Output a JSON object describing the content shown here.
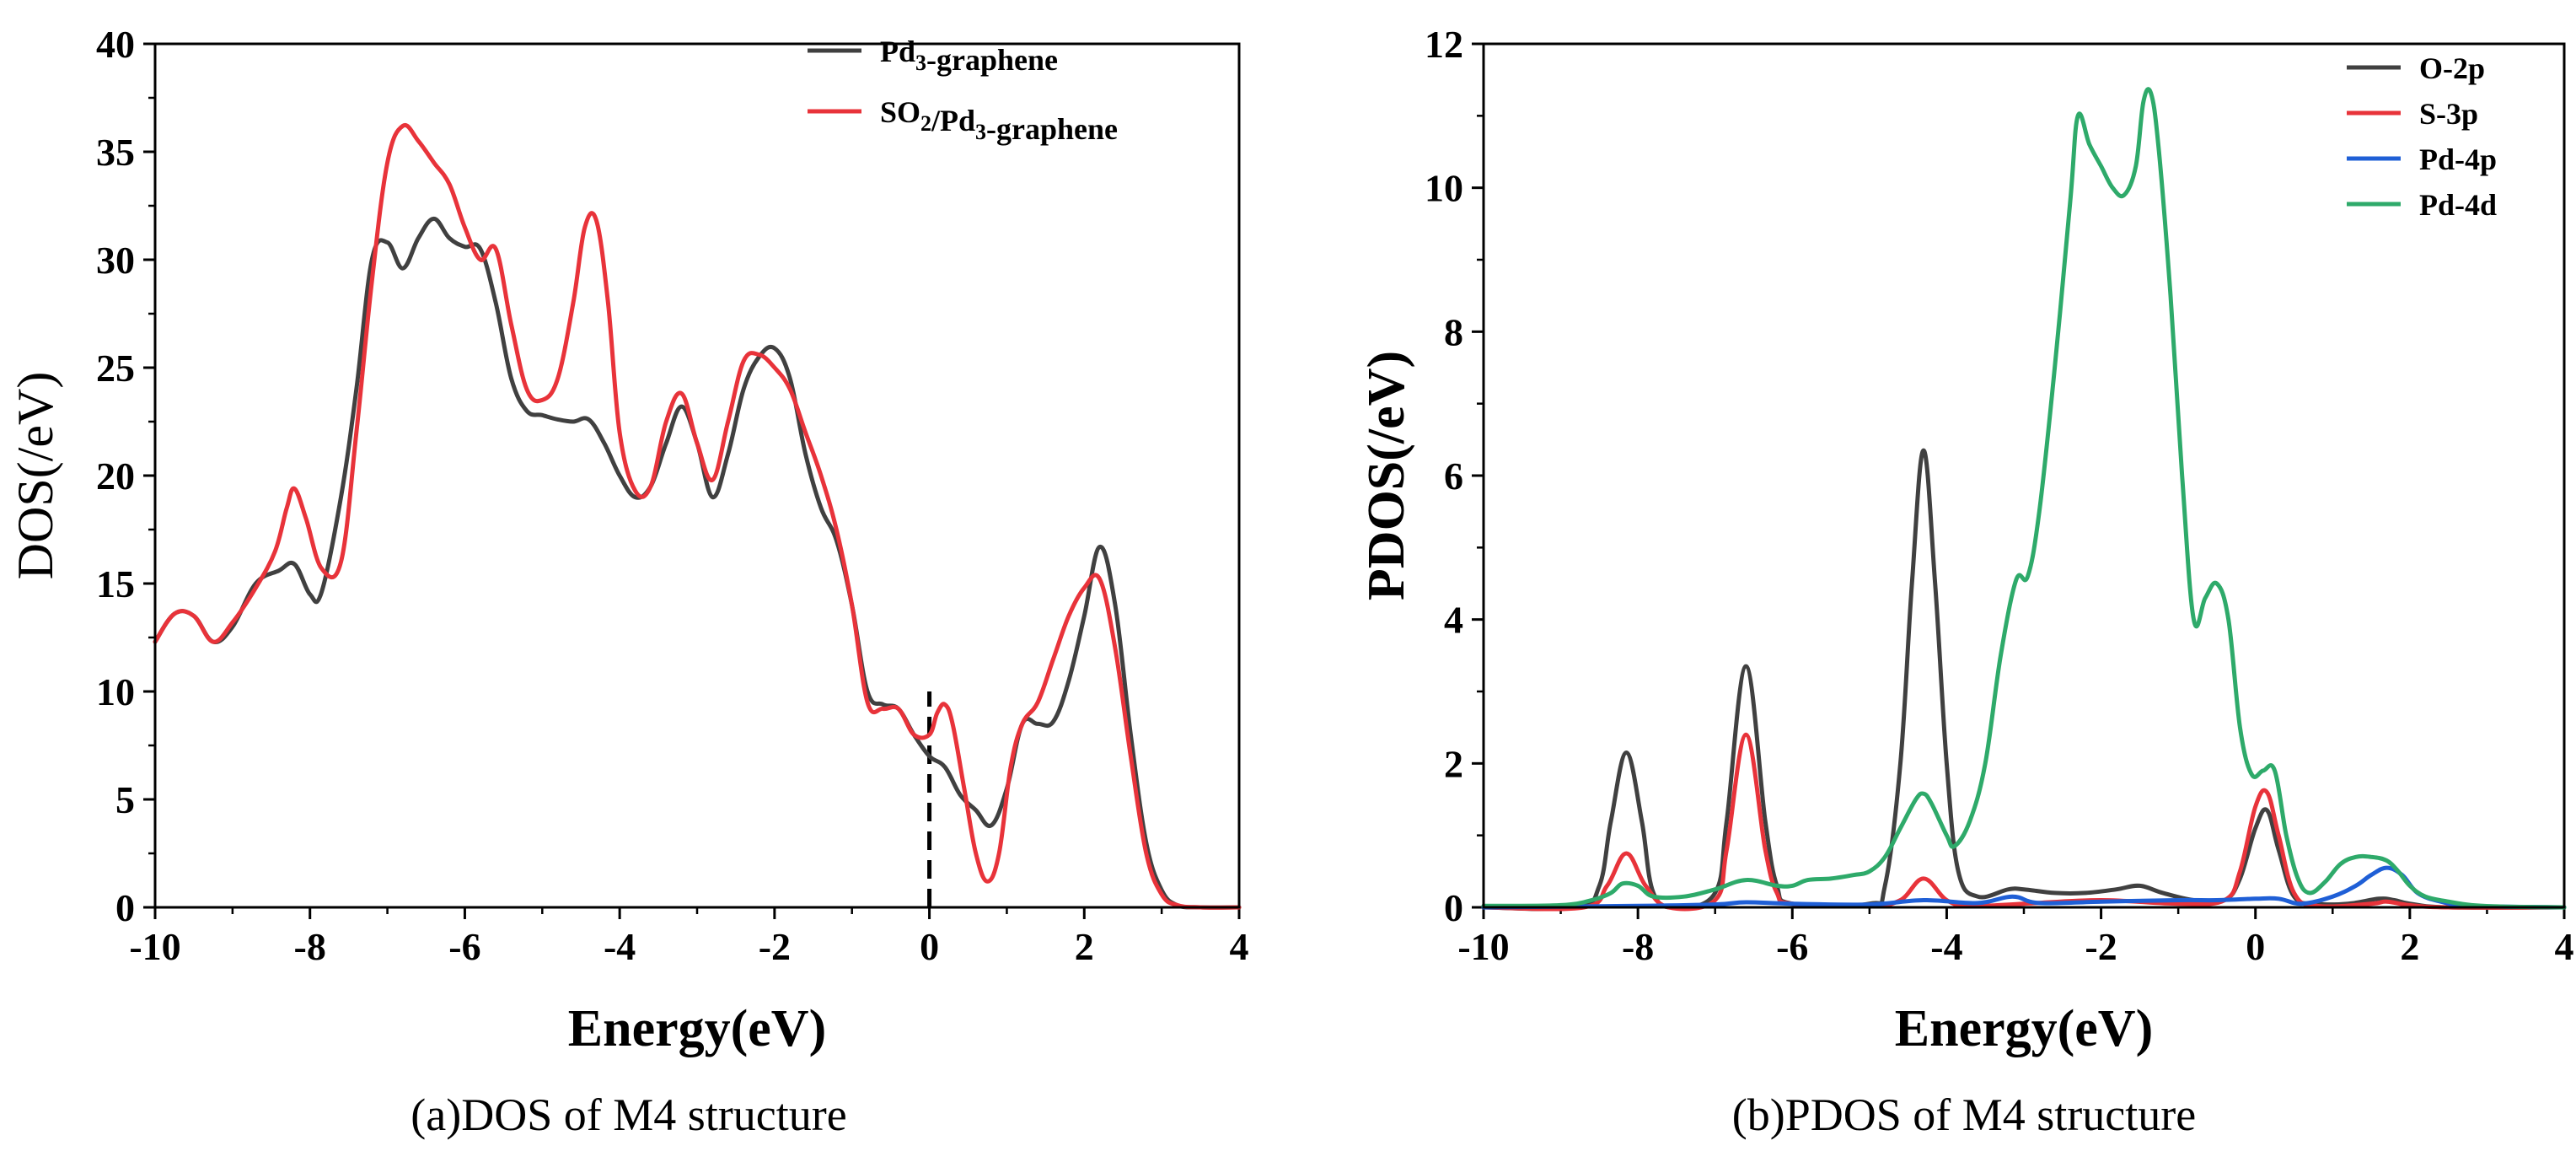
{
  "chart_data": [
    {
      "type": "line",
      "title": "",
      "caption": "(a)DOS of M4 structure",
      "xlabel": "Energy(eV)",
      "ylabel": "DOS(/eV)",
      "xlim": [
        -10,
        4
      ],
      "ylim": [
        0,
        40
      ],
      "xticks": [
        -10,
        -8,
        -6,
        -4,
        -2,
        0,
        2,
        4
      ],
      "yticks": [
        0,
        5,
        10,
        15,
        20,
        25,
        30,
        35,
        40
      ],
      "fermi_line": {
        "x": 0,
        "y_top": 10,
        "style": "dashed"
      },
      "legend_position": "top-right",
      "series": [
        {
          "name": "Pd3-graphene",
          "legend_main": "Pd",
          "legend_sub": "3",
          "legend_rest": "-graphene",
          "color": "#404040",
          "x": [
            -10,
            -9.75,
            -9.5,
            -9.25,
            -9,
            -8.7,
            -8.4,
            -8.2,
            -8,
            -7.85,
            -7.6,
            -7.4,
            -7.2,
            -7.0,
            -6.8,
            -6.6,
            -6.4,
            -6.2,
            -6.0,
            -5.8,
            -5.6,
            -5.4,
            -5.2,
            -5.0,
            -4.8,
            -4.6,
            -4.4,
            -4.2,
            -4.0,
            -3.8,
            -3.6,
            -3.4,
            -3.2,
            -3.0,
            -2.8,
            -2.6,
            -2.4,
            -2.2,
            -2.0,
            -1.8,
            -1.6,
            -1.4,
            -1.2,
            -1.0,
            -0.8,
            -0.6,
            -0.4,
            -0.2,
            0,
            0.2,
            0.4,
            0.6,
            0.8,
            1.0,
            1.2,
            1.4,
            1.6,
            1.8,
            2.0,
            2.2,
            2.4,
            2.6,
            2.8,
            3.0,
            3.2,
            3.5,
            4.0
          ],
          "y": [
            12.3,
            13.6,
            13.5,
            12.3,
            13,
            15,
            15.6,
            15.9,
            14.5,
            14.6,
            19,
            24,
            30,
            30.8,
            29.6,
            31,
            31.9,
            31,
            30.6,
            30.5,
            28,
            24.5,
            23,
            22.8,
            22.6,
            22.5,
            22.6,
            21.5,
            20,
            19,
            19.5,
            21.5,
            23.2,
            21.5,
            19,
            21,
            24,
            25.5,
            25.9,
            24.5,
            21,
            18.5,
            17,
            14,
            10,
            9.4,
            9.2,
            8,
            7,
            6.5,
            5.2,
            4.5,
            3.8,
            5.5,
            8.5,
            8.5,
            8.6,
            10.5,
            13.5,
            16.7,
            14,
            8,
            3,
            0.8,
            0.1,
            0,
            0
          ]
        },
        {
          "name": "SO2/Pd3-graphene",
          "legend_main": "SO",
          "legend_sub": "2",
          "legend_rest": "/Pd",
          "legend_sub2": "3",
          "legend_rest2": "-graphene",
          "color": "#e8333a",
          "x": [
            -10,
            -9.75,
            -9.5,
            -9.25,
            -9,
            -8.7,
            -8.45,
            -8.3,
            -8.2,
            -8.05,
            -7.85,
            -7.6,
            -7.4,
            -7.2,
            -7.0,
            -6.8,
            -6.6,
            -6.4,
            -6.2,
            -6.0,
            -5.8,
            -5.6,
            -5.4,
            -5.2,
            -5.0,
            -4.8,
            -4.6,
            -4.45,
            -4.3,
            -4.15,
            -4.0,
            -3.8,
            -3.6,
            -3.4,
            -3.2,
            -3.0,
            -2.8,
            -2.6,
            -2.4,
            -2.2,
            -2.0,
            -1.8,
            -1.6,
            -1.4,
            -1.2,
            -1.0,
            -0.8,
            -0.6,
            -0.4,
            -0.2,
            0,
            0.1,
            0.2,
            0.3,
            0.45,
            0.6,
            0.75,
            0.9,
            1.05,
            1.2,
            1.4,
            1.6,
            1.8,
            2.0,
            2.2,
            2.4,
            2.6,
            2.8,
            3.0,
            3.2,
            3.5,
            4.0
          ],
          "y": [
            12.3,
            13.6,
            13.5,
            12.3,
            13.2,
            14.8,
            16.5,
            18.5,
            19.4,
            18,
            15.7,
            16,
            22,
            29,
            34.5,
            36.2,
            35.5,
            34.5,
            33.5,
            31.5,
            30,
            30.5,
            27,
            24,
            23.5,
            24.5,
            28,
            31.5,
            31.8,
            28,
            22,
            19.3,
            19.5,
            22.5,
            23.8,
            21.5,
            19.8,
            22.5,
            25.3,
            25.6,
            25,
            24,
            22,
            20,
            17.5,
            14,
            9.5,
            9.2,
            9.2,
            8,
            8,
            9,
            9.4,
            8.5,
            5.5,
            2.5,
            1.2,
            2.5,
            6.5,
            8.5,
            9.5,
            11.5,
            13.5,
            14.8,
            15.2,
            12,
            7,
            2.5,
            0.6,
            0.1,
            0,
            0
          ]
        }
      ]
    },
    {
      "type": "line",
      "title": "",
      "caption": "(b)PDOS of M4 structure",
      "xlabel": "Energy(eV)",
      "ylabel": "PDOS(/eV)",
      "xlim": [
        -10,
        4
      ],
      "ylim": [
        0,
        12
      ],
      "xticks": [
        -10,
        -8,
        -6,
        -4,
        -2,
        0,
        2,
        4
      ],
      "yticks": [
        0,
        2,
        4,
        6,
        8,
        10,
        12
      ],
      "legend_position": "top-right",
      "series": [
        {
          "name": "O-2p",
          "color": "#404040",
          "x": [
            -10,
            -8.8,
            -8.5,
            -8.35,
            -8.15,
            -7.95,
            -7.8,
            -7.5,
            -7.0,
            -6.85,
            -6.6,
            -6.35,
            -6.2,
            -6.0,
            -5.0,
            -4.8,
            -4.6,
            -4.45,
            -4.3,
            -4.15,
            -4.0,
            -3.85,
            -3.6,
            -3.2,
            -3.0,
            -2.6,
            -2.2,
            -1.8,
            -1.5,
            -1.2,
            -0.8,
            -0.4,
            -0.2,
            0,
            0.15,
            0.3,
            0.5,
            0.8,
            1.2,
            1.6,
            1.8,
            2.0,
            2.5,
            4.0
          ],
          "y": [
            0,
            0,
            0.3,
            1.2,
            2.15,
            1.2,
            0.2,
            0,
            0.2,
            1.2,
            3.35,
            1.2,
            0.3,
            0.05,
            0.05,
            0.3,
            2.0,
            4.5,
            6.35,
            4.5,
            2.0,
            0.5,
            0.15,
            0.25,
            0.25,
            0.2,
            0.2,
            0.25,
            0.3,
            0.2,
            0.1,
            0.1,
            0.4,
            1.1,
            1.35,
            0.8,
            0.15,
            0.05,
            0.05,
            0.12,
            0.1,
            0.05,
            0,
            0
          ]
        },
        {
          "name": "S-3p",
          "color": "#e8333a",
          "x": [
            -10,
            -8.7,
            -8.4,
            -8.15,
            -7.9,
            -7.6,
            -7.0,
            -6.85,
            -6.6,
            -6.35,
            -6.2,
            -6.0,
            -5.0,
            -4.6,
            -4.3,
            -4.0,
            -3.7,
            -3.0,
            -2.0,
            -1.0,
            -0.4,
            -0.2,
            0,
            0.15,
            0.3,
            0.5,
            0.8,
            1.5,
            1.7,
            2.0,
            2.5,
            4.0
          ],
          "y": [
            0,
            0,
            0.3,
            0.75,
            0.3,
            0,
            0.1,
            0.8,
            2.4,
            0.8,
            0.2,
            0.05,
            0.02,
            0.1,
            0.4,
            0.1,
            0.02,
            0.05,
            0.1,
            0.05,
            0.1,
            0.5,
            1.4,
            1.6,
            1.0,
            0.2,
            0.02,
            0.05,
            0.08,
            0.03,
            0,
            0
          ]
        },
        {
          "name": "Pd-4p",
          "color": "#1f5fd6",
          "x": [
            -10,
            -8.0,
            -7.0,
            -6.6,
            -6.0,
            -5.0,
            -4.3,
            -3.6,
            -3.15,
            -2.8,
            -2.0,
            -1.0,
            -0.5,
            0,
            0.3,
            0.6,
            1.0,
            1.3,
            1.5,
            1.7,
            1.9,
            2.1,
            2.4,
            2.8,
            4.0
          ],
          "y": [
            0,
            0.02,
            0.04,
            0.07,
            0.05,
            0.04,
            0.1,
            0.06,
            0.15,
            0.06,
            0.08,
            0.1,
            0.1,
            0.12,
            0.12,
            0.05,
            0.15,
            0.3,
            0.45,
            0.55,
            0.45,
            0.2,
            0.08,
            0.02,
            0
          ]
        },
        {
          "name": "Pd-4d",
          "color": "#2eaa6a",
          "x": [
            -10,
            -9.0,
            -8.6,
            -8.35,
            -8.2,
            -8.0,
            -7.8,
            -7.4,
            -7.0,
            -6.6,
            -6.2,
            -6.0,
            -5.8,
            -5.5,
            -5.2,
            -5.0,
            -4.8,
            -4.6,
            -4.4,
            -4.3,
            -4.2,
            -4.0,
            -3.9,
            -3.7,
            -3.5,
            -3.3,
            -3.1,
            -2.95,
            -2.8,
            -2.6,
            -2.4,
            -2.3,
            -2.15,
            -2.0,
            -1.85,
            -1.7,
            -1.55,
            -1.45,
            -1.35,
            -1.25,
            -1.1,
            -0.95,
            -0.8,
            -0.65,
            -0.5,
            -0.35,
            -0.2,
            -0.05,
            0.1,
            0.25,
            0.4,
            0.55,
            0.7,
            0.9,
            1.1,
            1.3,
            1.5,
            1.7,
            1.85,
            2.0,
            2.2,
            2.5,
            2.8,
            3.2,
            4.0
          ],
          "y": [
            0.02,
            0.03,
            0.1,
            0.2,
            0.33,
            0.3,
            0.15,
            0.15,
            0.25,
            0.38,
            0.3,
            0.3,
            0.38,
            0.4,
            0.45,
            0.5,
            0.7,
            1.1,
            1.5,
            1.58,
            1.45,
            1.0,
            0.85,
            1.2,
            2.0,
            3.5,
            4.55,
            4.6,
            5.5,
            7.5,
            9.8,
            11.0,
            10.6,
            10.3,
            10.0,
            9.9,
            10.3,
            11.2,
            11.3,
            10.5,
            8.5,
            6.0,
            4.0,
            4.3,
            4.5,
            4.0,
            2.5,
            1.85,
            1.9,
            1.9,
            1.0,
            0.4,
            0.2,
            0.35,
            0.6,
            0.7,
            0.7,
            0.65,
            0.5,
            0.3,
            0.15,
            0.08,
            0.03,
            0.01,
            0
          ]
        }
      ]
    }
  ]
}
